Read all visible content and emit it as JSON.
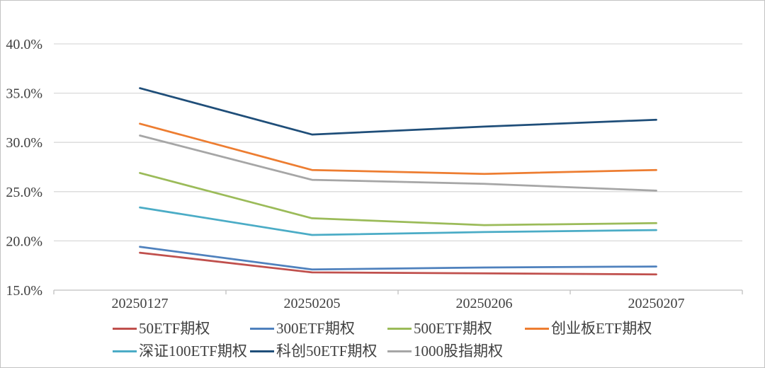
{
  "chart_data": {
    "type": "line",
    "title": "",
    "categories": [
      "20250127",
      "20250205",
      "20250206",
      "20250207"
    ],
    "series": [
      {
        "name": "50ETF期权",
        "color": "#C0504D",
        "values": [
          18.8,
          16.8,
          16.7,
          16.6
        ]
      },
      {
        "name": "300ETF期权",
        "color": "#4F81BD",
        "values": [
          19.4,
          17.1,
          17.3,
          17.4
        ]
      },
      {
        "name": "500ETF期权",
        "color": "#9BBB59",
        "values": [
          26.9,
          22.3,
          21.6,
          21.8
        ]
      },
      {
        "name": "创业板ETF期权",
        "color": "#ED7D31",
        "values": [
          31.9,
          27.2,
          26.8,
          27.2
        ]
      },
      {
        "name": "深证100ETF期权",
        "color": "#4BACC6",
        "values": [
          23.4,
          20.6,
          20.9,
          21.1
        ]
      },
      {
        "name": "科创50ETF期权",
        "color": "#1F4E79",
        "values": [
          35.5,
          30.8,
          31.6,
          32.3
        ]
      },
      {
        "name": "1000股指期权",
        "color": "#A6A6A6",
        "values": [
          30.7,
          26.2,
          25.8,
          25.1
        ]
      }
    ],
    "xlabel": "",
    "ylabel": "",
    "ylim": [
      15,
      40
    ],
    "y_tick_step": 5,
    "y_tick_labels": [
      "15.0%",
      "20.0%",
      "25.0%",
      "30.0%",
      "35.0%",
      "40.0%"
    ],
    "grid": true,
    "legend_position": "bottom",
    "legend_rows": [
      [
        "50ETF期权",
        "300ETF期权",
        "500ETF期权",
        "创业板ETF期权"
      ],
      [
        "深证100ETF期权",
        "科创50ETF期权",
        "1000股指期权"
      ]
    ],
    "colors": {
      "gridline": "#D9D9D9",
      "axis_line": "#BFBFBF",
      "tick_text": "#404040",
      "frame_border": "#C3C3C3",
      "background": "#FFFFFF"
    }
  }
}
